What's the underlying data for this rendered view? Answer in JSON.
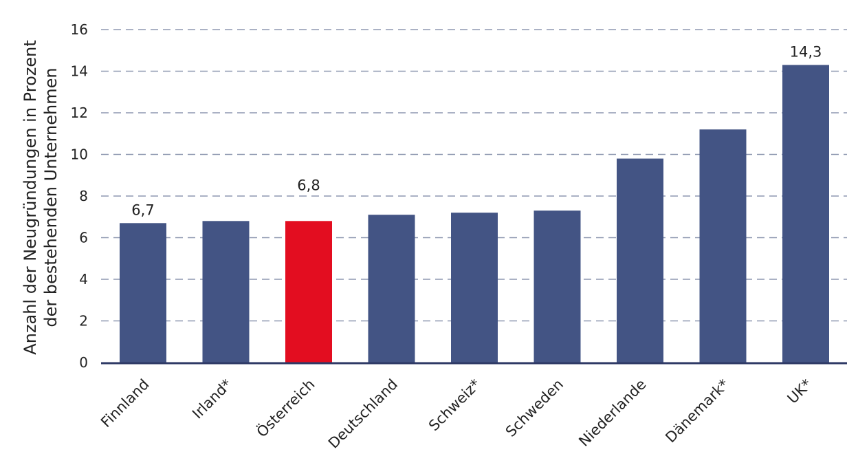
{
  "chart_data": {
    "type": "bar",
    "categories": [
      "Finnland",
      "Irland*",
      "Österreich",
      "Deutschland",
      "Schweiz*",
      "Schweden",
      "Niederlande",
      "Dänemark*",
      "UK*"
    ],
    "values": [
      6.7,
      6.8,
      6.8,
      7.1,
      7.2,
      7.3,
      9.8,
      11.2,
      14.3
    ],
    "data_labels": [
      "6,7",
      "",
      "6,8",
      "",
      "",
      "",
      "",
      "",
      "14,3"
    ],
    "highlight_index": 2,
    "ylabel_lines": [
      "Anzahl der Neugründungen in Prozent",
      "der bestehenden Unternehmen"
    ],
    "ylim": [
      0,
      16
    ],
    "yticks": [
      0,
      2,
      4,
      6,
      8,
      10,
      12,
      14,
      16
    ],
    "grid": true,
    "colors": {
      "bar": "#435484",
      "highlight": "#e30d20",
      "grid": "#8e97b0",
      "axis": "#2f3a66"
    }
  }
}
